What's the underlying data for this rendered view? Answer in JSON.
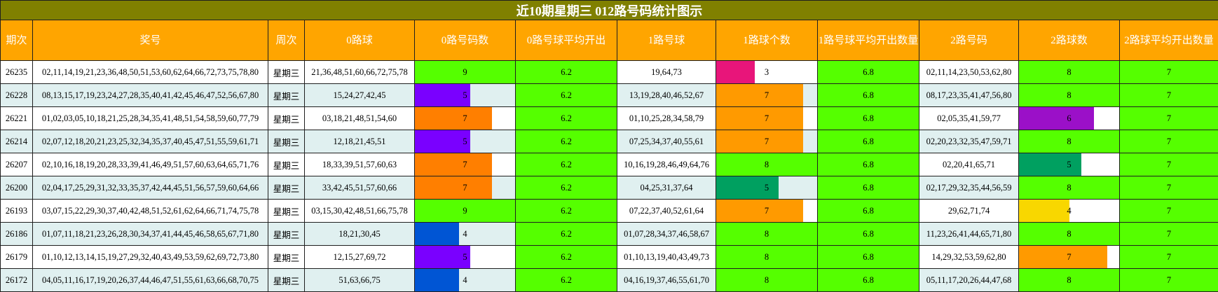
{
  "title": "近10期星期三 012路号码统计图示",
  "headers": [
    "期次",
    "奖号",
    "周次",
    "0路球",
    "0路号码数",
    "0路号球平均开出",
    "1路号球",
    "1路球个数",
    "1路号球平均开出数量",
    "2路号码",
    "2路球数",
    "2路球平均开出数量"
  ],
  "colors": {
    "title_bg": "#808000",
    "header_bg": "#ffa500",
    "green": "#55ff00",
    "row_teal": "#e0f0f0",
    "row_white": "#ffffff",
    "bar_purple": "#7a00ff",
    "bar_orange_dark": "#ff7f00",
    "bar_orange": "#ff9a00",
    "bar_blue": "#0055d4",
    "bar_pink": "#e8157a",
    "bar_sea": "#00a060",
    "bar_violet": "#9b10c8",
    "bar_yellow": "#f8d700"
  },
  "rows": [
    {
      "issue": "26235",
      "numbers": "02,11,14,19,21,23,36,48,50,51,53,60,62,64,66,72,73,75,78,80",
      "weekday": "星期三",
      "r0": "21,36,48,51,60,66,72,75,78",
      "r0_count": "9",
      "r0_avg": "6.2",
      "r1": "19,64,73",
      "r1_count": "3",
      "r1_avg": "6.8",
      "r2": "02,11,14,23,50,53,62,80",
      "r2_count": "8",
      "r2_avg": "7",
      "r0_style": {
        "type": "green"
      },
      "r1_style": {
        "type": "bar",
        "color": "#e8157a",
        "fraction": 0.38
      },
      "r2_style": {
        "type": "green"
      }
    },
    {
      "issue": "26228",
      "numbers": "08,13,15,17,19,23,24,27,28,35,40,41,42,45,46,47,52,56,67,80",
      "weekday": "星期三",
      "r0": "15,24,27,42,45",
      "r0_count": "5",
      "r0_avg": "6.2",
      "r1": "13,19,28,40,46,52,67",
      "r1_count": "7",
      "r1_avg": "6.8",
      "r2": "08,17,23,35,41,47,56,80",
      "r2_count": "8",
      "r2_avg": "7",
      "r0_style": {
        "type": "bar",
        "color": "#7a00ff",
        "fraction": 0.55
      },
      "r1_style": {
        "type": "bar",
        "color": "#ff9a00",
        "fraction": 0.86
      },
      "r2_style": {
        "type": "green"
      }
    },
    {
      "issue": "26221",
      "numbers": "01,02,03,05,10,18,21,25,28,34,35,41,48,51,54,58,59,60,77,79",
      "weekday": "星期三",
      "r0": "03,18,21,48,51,54,60",
      "r0_count": "7",
      "r0_avg": "6.2",
      "r1": "01,10,25,28,34,58,79",
      "r1_count": "7",
      "r1_avg": "6.8",
      "r2": "02,05,35,41,59,77",
      "r2_count": "6",
      "r2_avg": "7",
      "r0_style": {
        "type": "bar",
        "color": "#ff7f00",
        "fraction": 0.77
      },
      "r1_style": {
        "type": "bar",
        "color": "#ff9a00",
        "fraction": 0.86
      },
      "r2_style": {
        "type": "bar",
        "color": "#9b10c8",
        "fraction": 0.75
      }
    },
    {
      "issue": "26214",
      "numbers": "02,07,12,18,20,21,23,25,32,34,35,37,40,45,47,51,55,59,61,71",
      "weekday": "星期三",
      "r0": "12,18,21,45,51",
      "r0_count": "5",
      "r0_avg": "6.2",
      "r1": "07,25,34,37,40,55,61",
      "r1_count": "7",
      "r1_avg": "6.8",
      "r2": "02,20,23,32,35,47,59,71",
      "r2_count": "8",
      "r2_avg": "7",
      "r0_style": {
        "type": "bar",
        "color": "#7a00ff",
        "fraction": 0.55
      },
      "r1_style": {
        "type": "bar",
        "color": "#ff9a00",
        "fraction": 0.86
      },
      "r2_style": {
        "type": "green"
      }
    },
    {
      "issue": "26207",
      "numbers": "02,10,16,18,19,20,28,33,39,41,46,49,51,57,60,63,64,65,71,76",
      "weekday": "星期三",
      "r0": "18,33,39,51,57,60,63",
      "r0_count": "7",
      "r0_avg": "6.2",
      "r1": "10,16,19,28,46,49,64,76",
      "r1_count": "8",
      "r1_avg": "6.8",
      "r2": "02,20,41,65,71",
      "r2_count": "5",
      "r2_avg": "7",
      "r0_style": {
        "type": "bar",
        "color": "#ff7f00",
        "fraction": 0.77
      },
      "r1_style": {
        "type": "green"
      },
      "r2_style": {
        "type": "bar",
        "color": "#00a060",
        "fraction": 0.62
      }
    },
    {
      "issue": "26200",
      "numbers": "02,04,17,25,29,31,32,33,35,37,42,44,45,51,56,57,59,60,64,66",
      "weekday": "星期三",
      "r0": "33,42,45,51,57,60,66",
      "r0_count": "7",
      "r0_avg": "6.2",
      "r1": "04,25,31,37,64",
      "r1_count": "5",
      "r1_avg": "6.8",
      "r2": "02,17,29,32,35,44,56,59",
      "r2_count": "8",
      "r2_avg": "7",
      "r0_style": {
        "type": "bar",
        "color": "#ff7f00",
        "fraction": 0.77
      },
      "r1_style": {
        "type": "bar",
        "color": "#00a060",
        "fraction": 0.62
      },
      "r2_style": {
        "type": "green"
      }
    },
    {
      "issue": "26193",
      "numbers": "03,07,15,22,29,30,37,40,42,48,51,52,61,62,64,66,71,74,75,78",
      "weekday": "星期三",
      "r0": "03,15,30,42,48,51,66,75,78",
      "r0_count": "9",
      "r0_avg": "6.2",
      "r1": "07,22,37,40,52,61,64",
      "r1_count": "7",
      "r1_avg": "6.8",
      "r2": "29,62,71,74",
      "r2_count": "4",
      "r2_avg": "7",
      "r0_style": {
        "type": "green"
      },
      "r1_style": {
        "type": "bar",
        "color": "#ff9a00",
        "fraction": 0.86
      },
      "r2_style": {
        "type": "bar",
        "color": "#f8d700",
        "fraction": 0.5
      }
    },
    {
      "issue": "26186",
      "numbers": "01,07,11,18,21,23,26,28,30,34,37,41,44,45,46,58,65,67,71,80",
      "weekday": "星期三",
      "r0": "18,21,30,45",
      "r0_count": "4",
      "r0_avg": "6.2",
      "r1": "01,07,28,34,37,46,58,67",
      "r1_count": "8",
      "r1_avg": "6.8",
      "r2": "11,23,26,41,44,65,71,80",
      "r2_count": "8",
      "r2_avg": "7",
      "r0_style": {
        "type": "bar",
        "color": "#0055d4",
        "fraction": 0.44
      },
      "r1_style": {
        "type": "green"
      },
      "r2_style": {
        "type": "green"
      }
    },
    {
      "issue": "26179",
      "numbers": "01,10,12,13,14,15,19,27,29,32,40,43,49,53,59,62,69,72,73,80",
      "weekday": "星期三",
      "r0": "12,15,27,69,72",
      "r0_count": "5",
      "r0_avg": "6.2",
      "r1": "01,10,13,19,40,43,49,73",
      "r1_count": "8",
      "r1_avg": "6.8",
      "r2": "14,29,32,53,59,62,80",
      "r2_count": "7",
      "r2_avg": "7",
      "r0_style": {
        "type": "bar",
        "color": "#7a00ff",
        "fraction": 0.55
      },
      "r1_style": {
        "type": "green"
      },
      "r2_style": {
        "type": "bar",
        "color": "#ff9a00",
        "fraction": 0.88
      }
    },
    {
      "issue": "26172",
      "numbers": "04,05,11,16,17,19,20,26,37,44,46,47,51,55,61,63,66,68,70,75",
      "weekday": "星期三",
      "r0": "51,63,66,75",
      "r0_count": "4",
      "r0_avg": "6.2",
      "r1": "04,16,19,37,46,55,61,70",
      "r1_count": "8",
      "r1_avg": "6.8",
      "r2": "05,11,17,20,26,44,47,68",
      "r2_count": "8",
      "r2_avg": "7",
      "r0_style": {
        "type": "bar",
        "color": "#0055d4",
        "fraction": 0.44
      },
      "r1_style": {
        "type": "green"
      },
      "r2_style": {
        "type": "green"
      }
    }
  ]
}
